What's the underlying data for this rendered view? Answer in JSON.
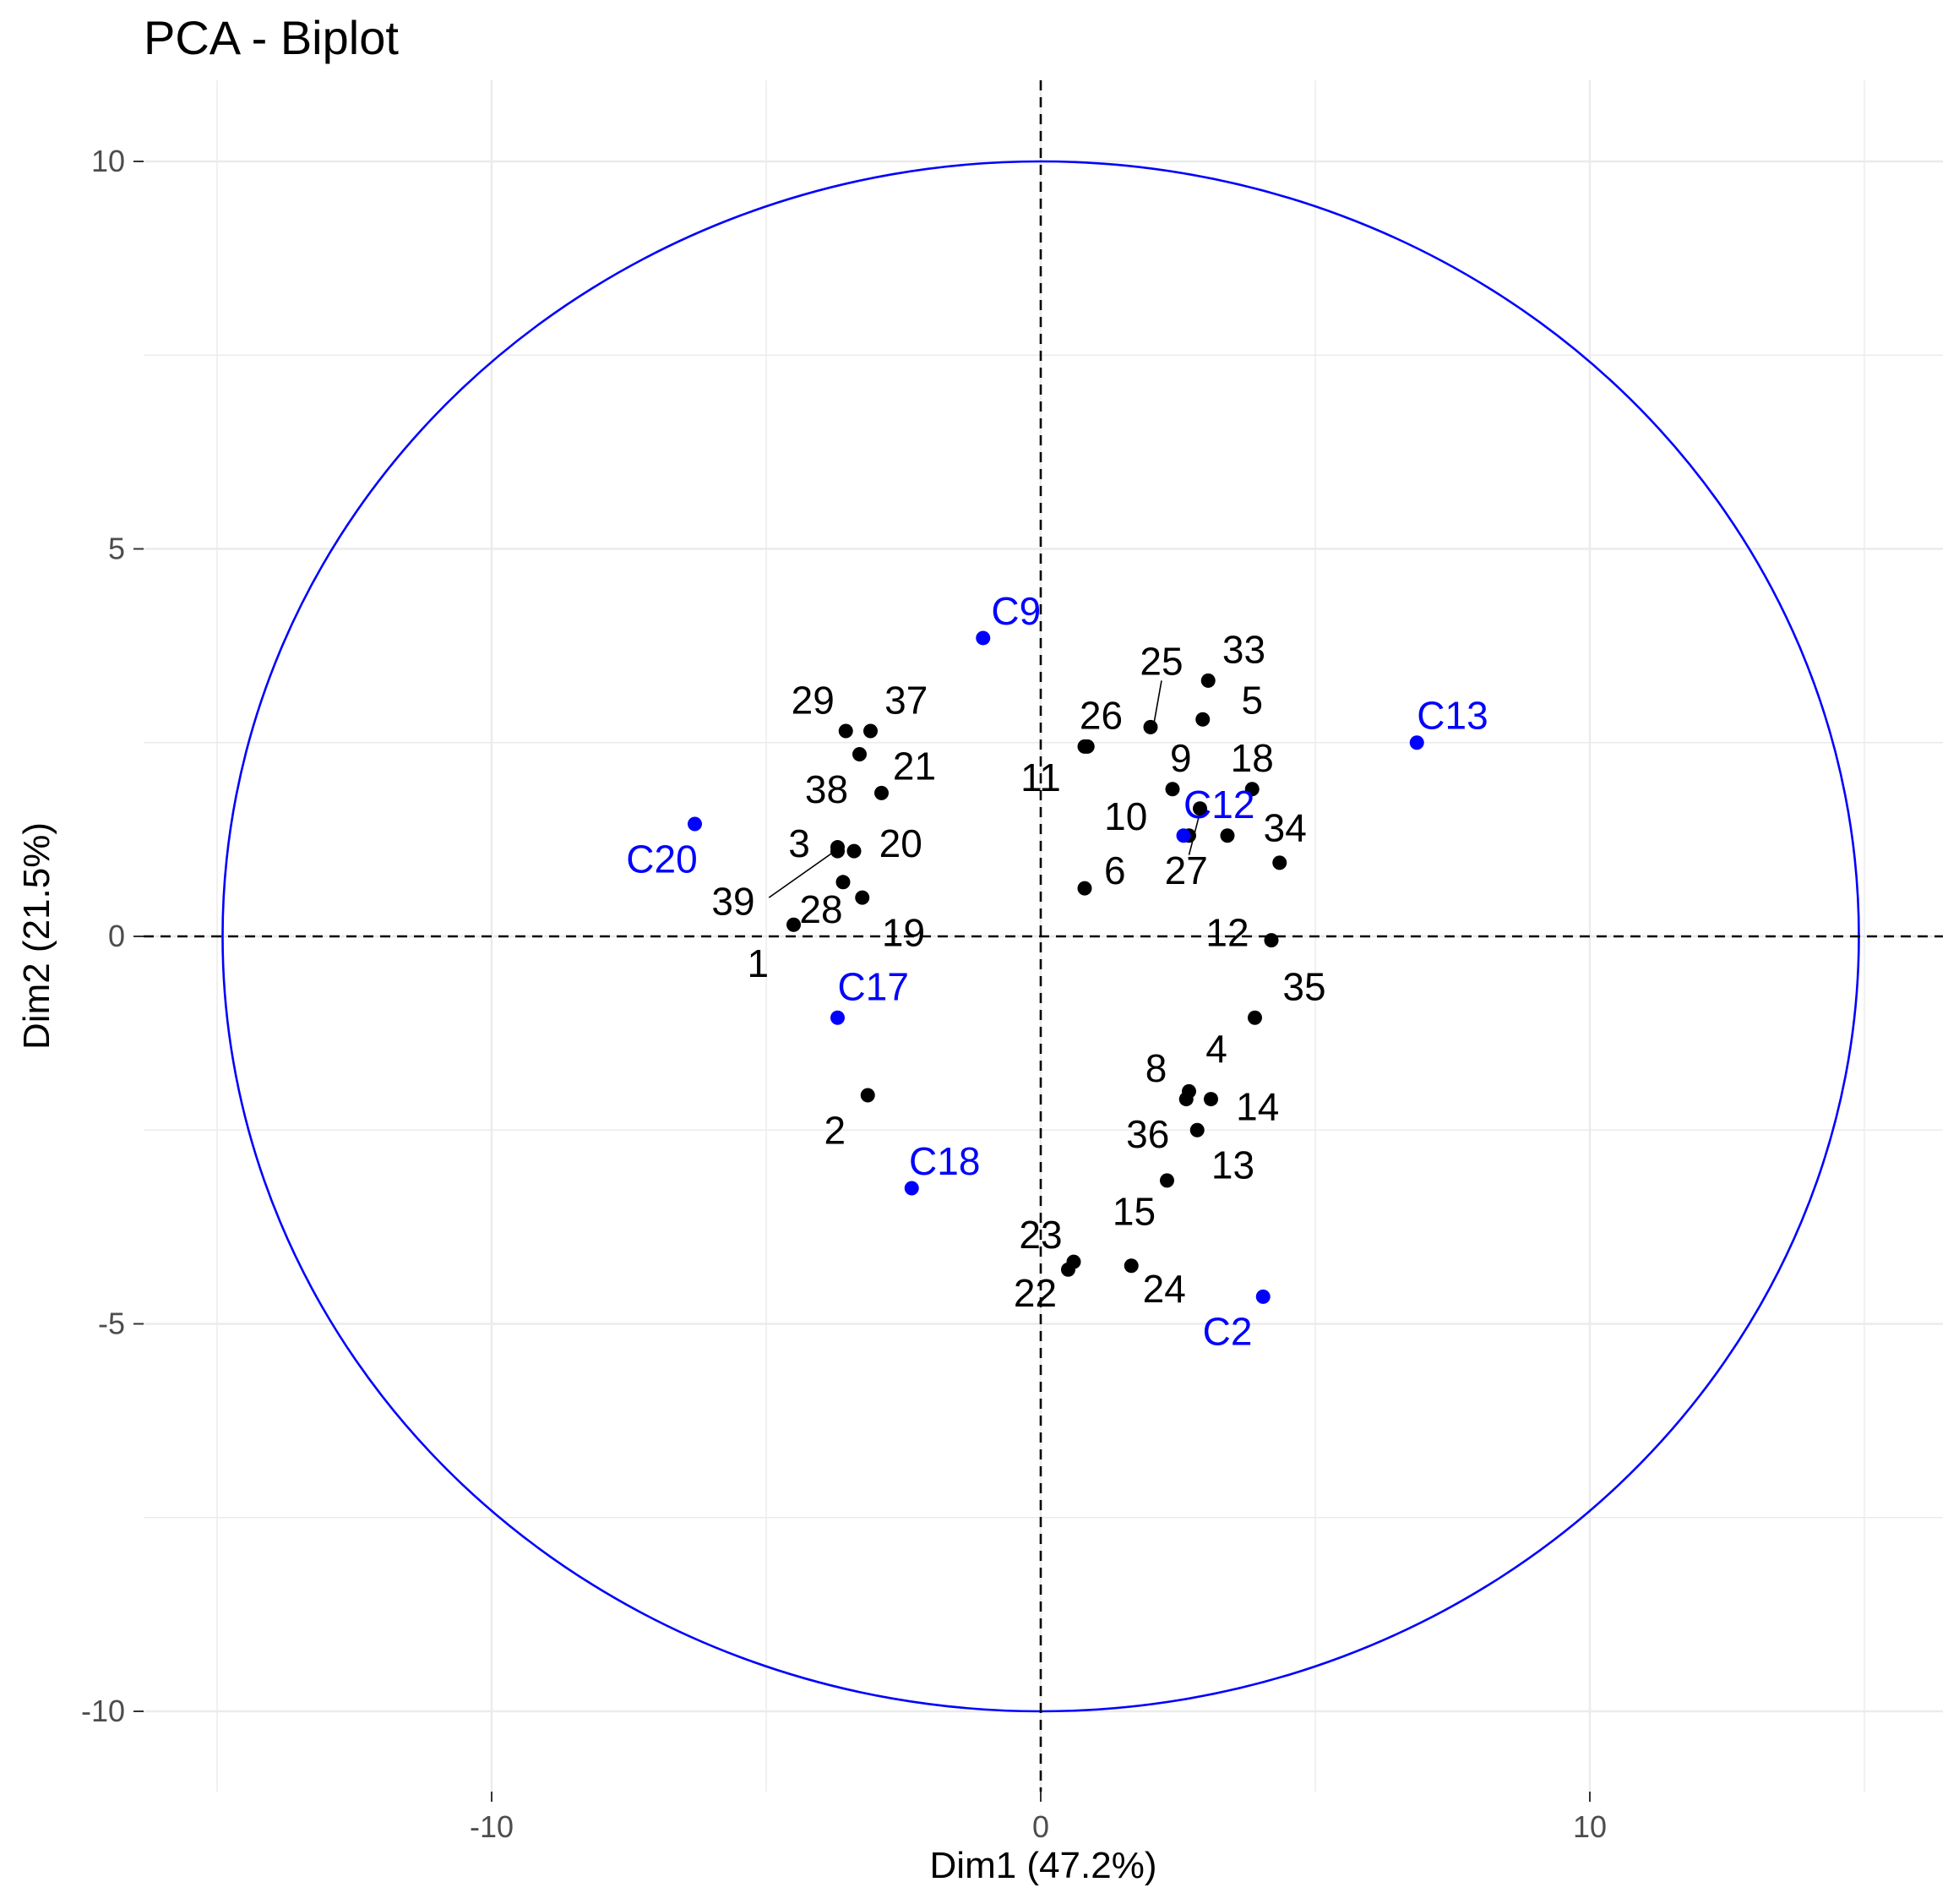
{
  "chart_data": {
    "type": "scatter",
    "title": "PCA - Biplot",
    "xlabel": "Dim1 (47.2%)",
    "ylabel": "Dim2 (21.5%)",
    "xlim": [
      -15,
      16
    ],
    "ylim": [
      -11.5,
      11
    ],
    "x_ticks": [
      -10,
      0,
      10
    ],
    "y_ticks": [
      -10,
      -5,
      0,
      5,
      10
    ],
    "x_tick_labels": [
      "-10",
      "0",
      "10"
    ],
    "y_tick_labels": [
      "-10",
      "-5",
      "0",
      "5",
      "10"
    ],
    "grid": true,
    "circle_radius": 10,
    "circle_rx": 14.9,
    "colors": {
      "individuals": "#000000",
      "variables": "#0000ff",
      "circle": "#0000ff",
      "grid": "#ebebeb",
      "axis_lines": "#000000"
    },
    "individuals": [
      {
        "label": "1",
        "x": -4.5,
        "y": 0.15,
        "lx": -5.15,
        "ly": -0.35
      },
      {
        "label": "2",
        "x": -3.15,
        "y": -2.05,
        "lx": -3.75,
        "ly": -2.5
      },
      {
        "label": "3",
        "x": -3.7,
        "y": 1.1,
        "lx": -4.4,
        "ly": 1.2
      },
      {
        "label": "5",
        "x": 2.95,
        "y": 2.8,
        "lx": 3.85,
        "ly": 3.05
      },
      {
        "label": "6",
        "x": 0.8,
        "y": 0.62,
        "lx": 1.35,
        "ly": 0.85
      },
      {
        "label": "8",
        "x": 2.7,
        "y": -2.0,
        "lx": 2.1,
        "ly": -1.7
      },
      {
        "label": "9",
        "x": 2.4,
        "y": 1.9,
        "lx": 2.55,
        "ly": 2.3
      },
      {
        "label": "10",
        "x": 2.9,
        "y": 1.65,
        "lx": 1.55,
        "ly": 1.55
      },
      {
        "label": "11",
        "x": 0.8,
        "y": 2.45,
        "lx": 0.0,
        "ly": 2.05
      },
      {
        "label": "12",
        "x": 4.2,
        "y": -0.05,
        "lx": 3.4,
        "ly": 0.05
      },
      {
        "label": "13",
        "x": 2.85,
        "y": -2.5,
        "lx": 3.5,
        "ly": -2.95
      },
      {
        "label": "14",
        "x": 3.1,
        "y": -2.1,
        "lx": 3.95,
        "ly": -2.2
      },
      {
        "label": "15",
        "x": 2.3,
        "y": -3.15,
        "lx": 1.7,
        "ly": -3.55
      },
      {
        "label": "18",
        "x": 3.85,
        "y": 1.9,
        "lx": 3.85,
        "ly": 2.3
      },
      {
        "label": "19",
        "x": -3.25,
        "y": 0.5,
        "lx": -2.5,
        "ly": 0.05
      },
      {
        "label": "20",
        "x": -3.4,
        "y": 1.1,
        "lx": -2.55,
        "ly": 1.2
      },
      {
        "label": "21",
        "x": -2.9,
        "y": 1.85,
        "lx": -2.3,
        "ly": 2.2
      },
      {
        "label": "22",
        "x": 0.5,
        "y": -4.3,
        "lx": -0.1,
        "ly": -4.6
      },
      {
        "label": "23",
        "x": 0.6,
        "y": -4.2,
        "lx": 0.0,
        "ly": -3.85
      },
      {
        "label": "24",
        "x": 1.65,
        "y": -4.25,
        "lx": 2.25,
        "ly": -4.55
      },
      {
        "label": "25",
        "x": 2.0,
        "y": 2.7,
        "lx": 2.2,
        "ly": 3.55
      },
      {
        "label": "26",
        "x": 0.85,
        "y": 2.45,
        "lx": 1.1,
        "ly": 2.85
      },
      {
        "label": "27",
        "x": 2.7,
        "y": 1.3,
        "lx": 2.65,
        "ly": 0.85
      },
      {
        "label": "28",
        "x": -3.6,
        "y": 0.7,
        "lx": -4.0,
        "ly": 0.35
      },
      {
        "label": "29",
        "x": -3.55,
        "y": 2.65,
        "lx": -4.15,
        "ly": 3.05
      },
      {
        "label": "33",
        "x": 3.05,
        "y": 3.3,
        "lx": 3.7,
        "ly": 3.7
      },
      {
        "label": "34",
        "x": 4.35,
        "y": 0.95,
        "lx": 4.45,
        "ly": 1.4
      },
      {
        "label": "35",
        "x": 3.9,
        "y": -1.05,
        "lx": 4.8,
        "ly": -0.65
      },
      {
        "label": "36",
        "x": 2.65,
        "y": -2.1,
        "lx": 1.95,
        "ly": -2.55
      },
      {
        "label": "37",
        "x": -3.1,
        "y": 2.65,
        "lx": -2.45,
        "ly": 3.05
      },
      {
        "label": "38",
        "x": -3.3,
        "y": 2.35,
        "lx": -3.9,
        "ly": 1.9
      },
      {
        "label": "39",
        "x": -3.7,
        "y": 1.15,
        "lx": -5.6,
        "ly": 0.45
      },
      {
        "label": "4",
        "x": 3.4,
        "y": 1.3,
        "lx": 3.2,
        "ly": -1.45
      }
    ],
    "variables": [
      {
        "label": "C2",
        "x": 4.05,
        "y": -4.65,
        "lx": 3.4,
        "ly": -5.1
      },
      {
        "label": "C9",
        "x": -1.05,
        "y": 3.85,
        "lx": -0.45,
        "ly": 4.2
      },
      {
        "label": "C12",
        "x": 2.6,
        "y": 1.3,
        "lx": 3.25,
        "ly": 1.7
      },
      {
        "label": "C13",
        "x": 6.85,
        "y": 2.5,
        "lx": 7.5,
        "ly": 2.85
      },
      {
        "label": "C17",
        "x": -3.7,
        "y": -1.05,
        "lx": -3.05,
        "ly": -0.65
      },
      {
        "label": "C18",
        "x": -2.35,
        "y": -3.25,
        "lx": -1.75,
        "ly": -2.9
      },
      {
        "label": "C20",
        "x": -6.3,
        "y": 1.45,
        "lx": -6.9,
        "ly": 1.0
      }
    ],
    "connectors": [
      {
        "from": "39",
        "x1": -4.95,
        "y1": 0.5,
        "x2": -3.75,
        "y2": 1.1
      },
      {
        "from": "27",
        "x1": 2.7,
        "y1": 1.05,
        "x2": 2.9,
        "y2": 1.6
      },
      {
        "from": "25",
        "x1": 2.05,
        "y1": 2.7,
        "x2": 2.2,
        "y2": 3.3
      }
    ]
  }
}
